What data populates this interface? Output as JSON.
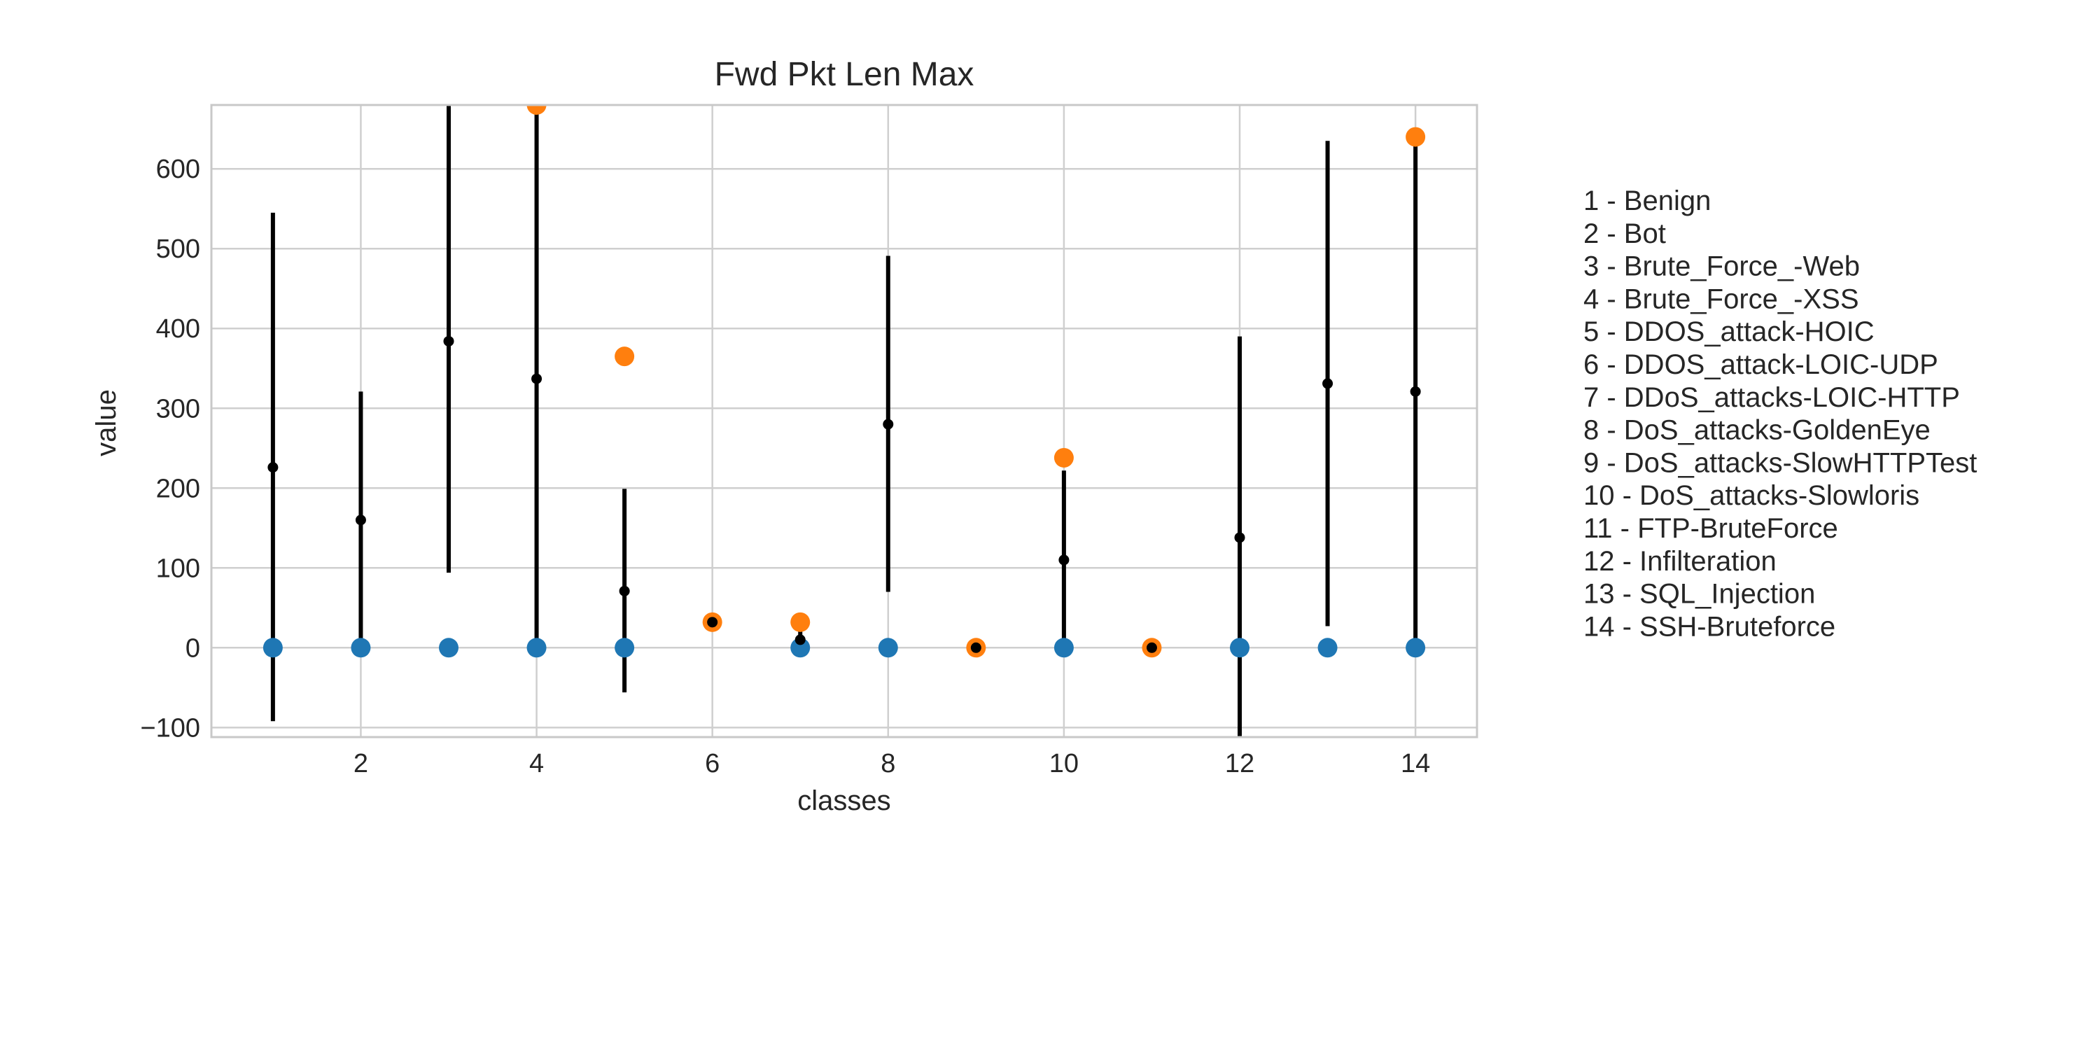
{
  "chart_data": {
    "type": "scatter",
    "title": "Fwd Pkt Len Max",
    "xlabel": "classes",
    "ylabel": "value",
    "xlim": [
      0.3,
      14.7
    ],
    "ylim": [
      -112,
      680
    ],
    "xticks": [
      2,
      4,
      6,
      8,
      10,
      12,
      14
    ],
    "yticks": [
      -100,
      0,
      100,
      200,
      300,
      400,
      500,
      600
    ],
    "ytick_labels": [
      "−100",
      "0",
      "100",
      "200",
      "300",
      "400",
      "500",
      "600"
    ],
    "grid": true,
    "legend": [
      "1 - Benign",
      "2 - Bot",
      "3 - Brute_Force_-Web",
      "4 - Brute_Force_-XSS",
      "5 - DDOS_attack-HOIC",
      "6 - DDOS_attack-LOIC-UDP",
      "7 - DDoS_attacks-LOIC-HTTP",
      "8 - DoS_attacks-GoldenEye",
      "9 - DoS_attacks-SlowHTTPTest",
      "10 - DoS_attacks-Slowloris",
      "11 - FTP-BruteForce",
      "12 - Infilteration",
      "13 - SQL_Injection",
      "14 - SSH-Bruteforce"
    ],
    "legend_placement": "right, outside plot",
    "colors": {
      "min": "#1f77b4",
      "max": "#ff7f0e",
      "mean": "#000000"
    },
    "classes": [
      {
        "x": 1,
        "min": 0,
        "max": null,
        "mean": 226,
        "std_low": -92,
        "std_high": 545
      },
      {
        "x": 2,
        "min": 0,
        "max": null,
        "mean": 160,
        "std_low": 0,
        "std_high": 321
      },
      {
        "x": 3,
        "min": 0,
        "max": null,
        "mean": 384,
        "std_low": 94,
        "std_high": 680
      },
      {
        "x": 4,
        "min": 0,
        "max": 680,
        "mean": 337,
        "std_low": 0,
        "std_high": 680
      },
      {
        "x": 5,
        "min": 0,
        "max": 365,
        "mean": 71,
        "std_low": -56,
        "std_high": 199
      },
      {
        "x": 6,
        "min": null,
        "max": 32,
        "mean": 32,
        "std_low": 32,
        "std_high": 32
      },
      {
        "x": 7,
        "min": 0,
        "max": 32,
        "mean": 10,
        "std_low": 0,
        "std_high": 24
      },
      {
        "x": 8,
        "min": 0,
        "max": null,
        "mean": 280,
        "std_low": 70,
        "std_high": 491
      },
      {
        "x": 9,
        "min": null,
        "max": 0,
        "mean": 0,
        "std_low": 0,
        "std_high": 0
      },
      {
        "x": 10,
        "min": 0,
        "max": 238,
        "mean": 110,
        "std_low": 0,
        "std_high": 222
      },
      {
        "x": 11,
        "min": null,
        "max": 0,
        "mean": 0,
        "std_low": 0,
        "std_high": 0
      },
      {
        "x": 12,
        "min": 0,
        "max": null,
        "mean": 138,
        "std_low": -112,
        "std_high": 390
      },
      {
        "x": 13,
        "min": 0,
        "max": null,
        "mean": 331,
        "std_low": 27,
        "std_high": 635
      },
      {
        "x": 14,
        "min": 0,
        "max": 640,
        "mean": 321,
        "std_low": 0,
        "std_high": 640
      }
    ]
  }
}
